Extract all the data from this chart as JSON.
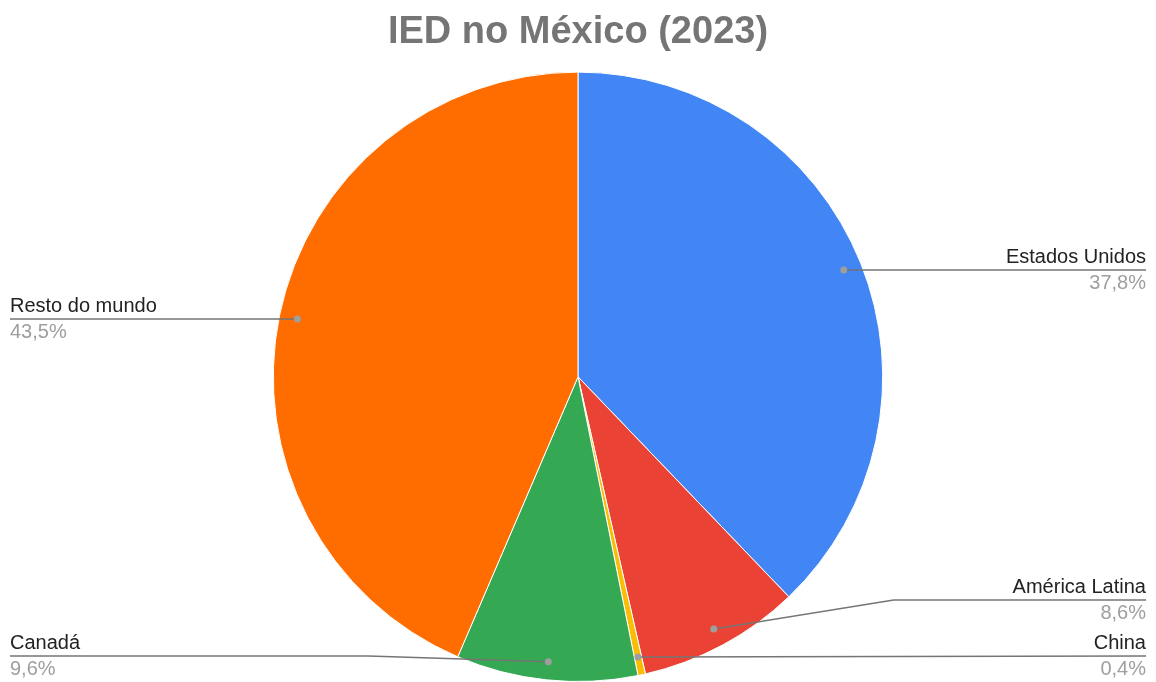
{
  "chart_data": {
    "type": "pie",
    "title": "IED no México (2023)",
    "categories": [
      "Estados Unidos",
      "América Latina",
      "China",
      "Canadá",
      "Resto do mundo"
    ],
    "values": [
      37.8,
      8.6,
      0.4,
      9.6,
      43.5
    ],
    "value_labels": [
      "37,8%",
      "8,6%",
      "0,4%",
      "9,6%",
      "43,5%"
    ],
    "colors": [
      "#4285f4",
      "#ea4335",
      "#fbbc04",
      "#34a853",
      "#ff6d01"
    ]
  }
}
